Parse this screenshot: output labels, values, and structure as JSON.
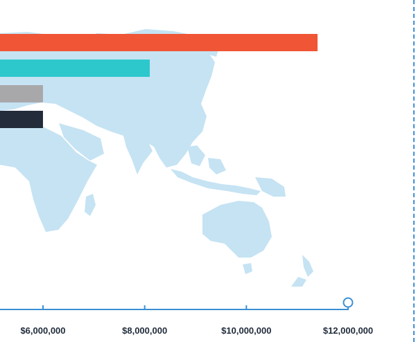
{
  "chart_data": {
    "type": "bar",
    "orientation": "horizontal",
    "title": "",
    "xlabel": "",
    "ylabel": "",
    "categories": [
      "",
      "",
      "",
      ""
    ],
    "values": [
      11400000,
      8100000,
      6000000,
      6000000
    ],
    "bar_colors": [
      "#f05535",
      "#2cc8cc",
      "#a8a8ab",
      "#222c3b"
    ],
    "xlim": [
      5000000,
      12000000
    ],
    "x_ticks": [
      6000000,
      8000000,
      10000000,
      12000000
    ],
    "x_tick_labels": [
      "$6,000,000",
      "$8,000,000",
      "$10,000,000",
      "$12,000,000"
    ],
    "axis_color": "#3a8fd4",
    "background": "world map (light blue, Asia-Pacific region visible)",
    "map_color": "#c5e3f3",
    "grid": false,
    "legend": "none"
  }
}
